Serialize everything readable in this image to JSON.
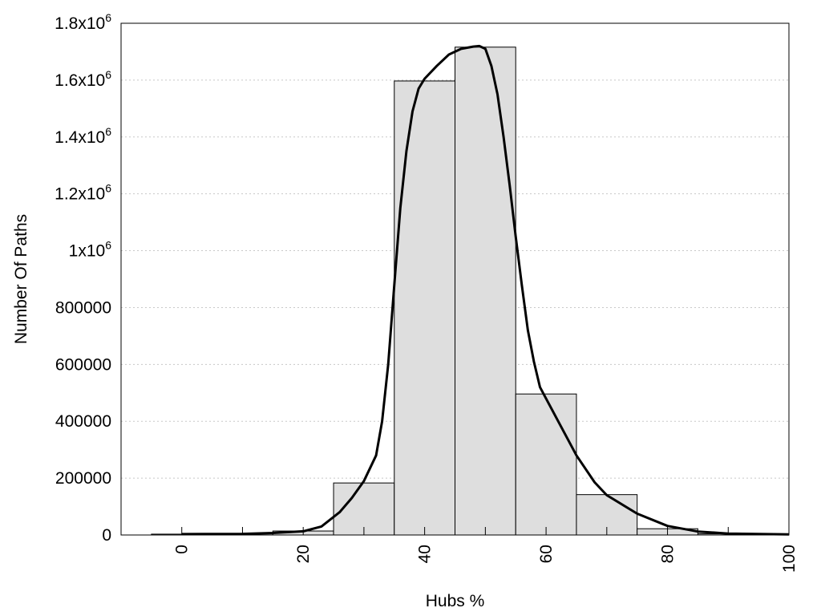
{
  "chart_data": {
    "type": "bar",
    "title": "",
    "xlabel": "Hubs %",
    "ylabel": "Number Of Paths",
    "xlim": [
      -10,
      100
    ],
    "ylim": [
      0,
      1800000
    ],
    "x_ticks": [
      0,
      20,
      40,
      60,
      80,
      100
    ],
    "y_ticks": [
      {
        "value": 0,
        "label": "0"
      },
      {
        "value": 200000,
        "label": "200000"
      },
      {
        "value": 400000,
        "label": "400000"
      },
      {
        "value": 600000,
        "label": "600000"
      },
      {
        "value": 800000,
        "label": "800000"
      },
      {
        "value": 1000000,
        "label": "1x10",
        "sup": "6"
      },
      {
        "value": 1200000,
        "label": "1.2x10",
        "sup": "6"
      },
      {
        "value": 1400000,
        "label": "1.4x10",
        "sup": "6"
      },
      {
        "value": 1600000,
        "label": "1.6x10",
        "sup": "6"
      },
      {
        "value": 1800000,
        "label": "1.8x10",
        "sup": "6"
      }
    ],
    "grid": true,
    "bin_width": 10,
    "bins": [
      {
        "x": 0,
        "value": 3000
      },
      {
        "x": 10,
        "value": 4000
      },
      {
        "x": 20,
        "value": 14000
      },
      {
        "x": 30,
        "value": 183000
      },
      {
        "x": 40,
        "value": 1597000
      },
      {
        "x": 50,
        "value": 1716000
      },
      {
        "x": 60,
        "value": 496000
      },
      {
        "x": 70,
        "value": 142000
      },
      {
        "x": 80,
        "value": 22000
      },
      {
        "x": 90,
        "value": 4000
      }
    ],
    "curve": {
      "x": [
        0,
        10,
        15,
        20,
        23,
        26,
        28,
        30,
        32,
        33,
        34,
        35,
        36,
        37,
        38,
        39,
        40,
        42,
        44,
        46,
        48,
        49,
        50,
        51,
        52,
        53,
        54,
        55,
        56,
        57,
        58,
        59,
        60,
        62,
        65,
        68,
        70,
        75,
        80,
        85,
        90,
        100
      ],
      "y": [
        3000,
        4000,
        7000,
        13000,
        30000,
        80000,
        130000,
        190000,
        280000,
        400000,
        600000,
        880000,
        1150000,
        1350000,
        1490000,
        1570000,
        1605000,
        1650000,
        1690000,
        1710000,
        1718000,
        1720000,
        1710000,
        1650000,
        1550000,
        1400000,
        1230000,
        1050000,
        880000,
        720000,
        610000,
        520000,
        480000,
        400000,
        280000,
        185000,
        140000,
        75000,
        32000,
        12000,
        5000,
        2000
      ]
    },
    "colors": {
      "bar_fill": "#dedede",
      "bar_edge": "#000000",
      "curve": "#000000"
    }
  }
}
